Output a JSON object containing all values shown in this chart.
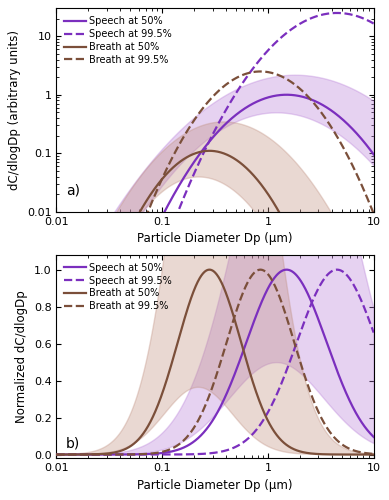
{
  "speech_color": "#7B2FBE",
  "breath_color": "#7B4F3A",
  "speech_fill_alpha": 0.35,
  "breath_fill_alpha": 0.35,
  "speech_fill_color": "#B87FD8",
  "breath_fill_color": "#C09080",
  "xlim": [
    0.01,
    10
  ],
  "ylim_a": [
    0.01,
    30
  ],
  "ylim_b": [
    -0.02,
    1.08
  ],
  "xlabel": "Particle Diameter Dp (μm)",
  "ylabel_a": "dC/dlogDp (arbitrary units)",
  "ylabel_b": "Normalized dC/dlogDp",
  "legend_entries": [
    "Speech at 50%",
    "Speech at 99.5%",
    "Breath at 50%",
    "Breath at 99.5%"
  ],
  "label_a": "a)",
  "label_b": "b)",
  "lw": 1.6,
  "fontsize_legend": 7.0,
  "fontsize_label": 8.5,
  "fontsize_tick": 8.0,
  "fontsize_panel": 10
}
